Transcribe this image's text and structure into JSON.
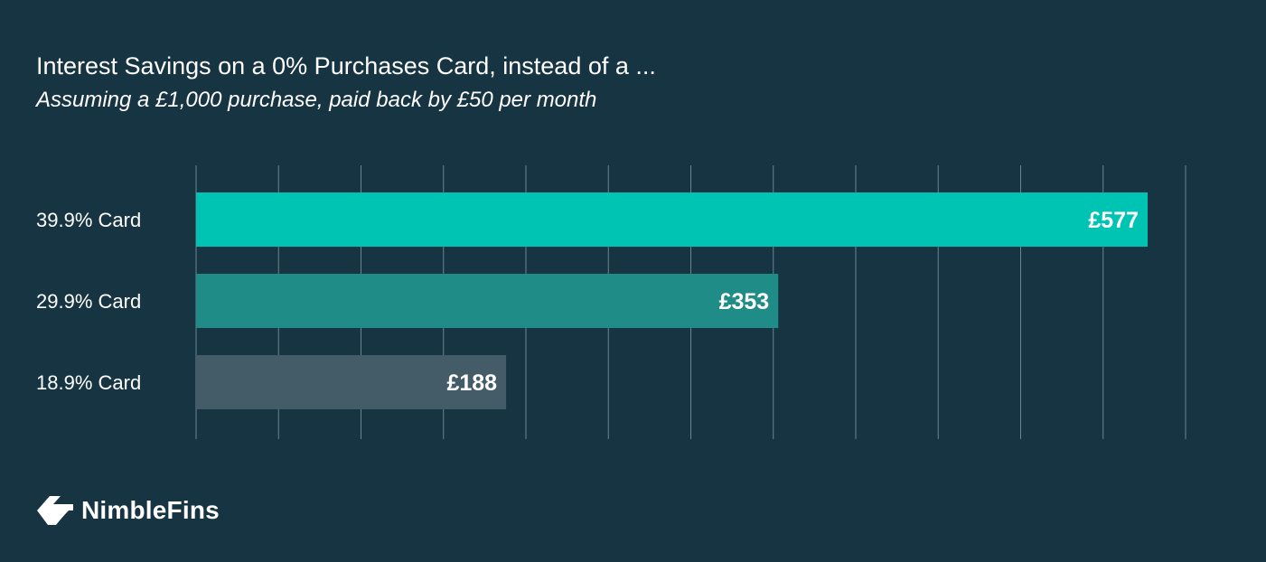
{
  "chart_data": {
    "type": "bar",
    "orientation": "horizontal",
    "title": "Interest Savings on a 0% Purchases Card, instead of a ...",
    "subtitle": "Assuming a £1,000 purchase, paid back by £50 per month",
    "categories": [
      "39.9% Card",
      "29.9% Card",
      "18.9% Card"
    ],
    "values": [
      577,
      353,
      188
    ],
    "value_labels": [
      "£577",
      "£353",
      "£188"
    ],
    "bar_colors": [
      "#00c4b3",
      "#1f8c87",
      "#435c67"
    ],
    "xlim": [
      0,
      600
    ],
    "grid": true,
    "grid_step": 50,
    "xlabel": "",
    "ylabel": ""
  },
  "brand": {
    "name": "NimbleFins",
    "icon": "nimblefins-logo-icon"
  },
  "colors": {
    "background": "#163442",
    "gridline": "#6c8591",
    "text": "#ffffff"
  }
}
